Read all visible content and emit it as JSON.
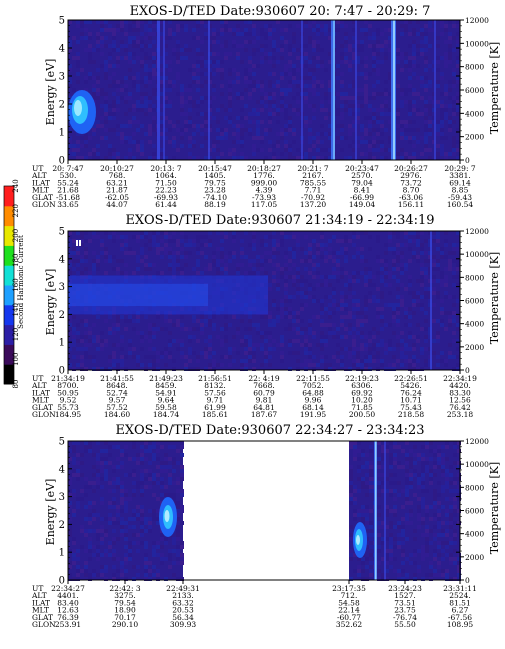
{
  "chart_data": [
    {
      "type": "heatmap",
      "title": "EXOS-D/TED   Date:930607  20: 7:47 - 20:29: 7",
      "ylabel": "Energy [eV]",
      "y2label": "Temperature [K]",
      "ylim": [
        0,
        5
      ],
      "y2lim": [
        0,
        12000
      ],
      "yticks": [
        "0",
        "1",
        "2",
        "3",
        "4",
        "5"
      ],
      "y2ticks": [
        "0",
        "2000",
        "4000",
        "6000",
        "8000",
        "10000",
        "12000"
      ],
      "row_labels": [
        "UT",
        "ALT",
        "ILAT",
        "MLT",
        "GLAT",
        "GLON"
      ],
      "columns": [
        [
          "20: 7:47",
          "530.",
          "55.24",
          "21.68",
          "-51.68",
          "33.65"
        ],
        [
          "20:10:27",
          "768.",
          "63.21",
          "21.87",
          "-62.05",
          "44.07"
        ],
        [
          "20:13: 7",
          "1064.",
          "71.50",
          "22.23",
          "-69.93",
          "61.44"
        ],
        [
          "20:15:47",
          "1405.",
          "79.75",
          "23.28",
          "-74.10",
          "88.19"
        ],
        [
          "20:18:27",
          "1776.",
          "999.00",
          "4.39",
          "-73.93",
          "117.05"
        ],
        [
          "20:21: 7",
          "2167.",
          "785.55",
          "7.71",
          "-70.92",
          "137.20"
        ],
        [
          "20:23:47",
          "2570.",
          "79.04",
          "8.41",
          "-66.99",
          "149.04"
        ],
        [
          "20:26:27",
          "2976.",
          "73.72",
          "8.70",
          "-63.06",
          "156.11"
        ],
        [
          "20:29: 7",
          "3381.",
          "69.14",
          "8.85",
          "-59.43",
          "160.54"
        ]
      ]
    },
    {
      "type": "heatmap",
      "title": "EXOS-D/TED   Date:930607  21:34:19 - 22:34:19",
      "ylabel": "Energy [eV]",
      "y2label": "Temperature [K]",
      "ylim": [
        0,
        5
      ],
      "y2lim": [
        0,
        12000
      ],
      "yticks": [
        "0",
        "1",
        "2",
        "3",
        "4",
        "5"
      ],
      "y2ticks": [
        "0",
        "2000",
        "4000",
        "6000",
        "8000",
        "10000",
        "12000"
      ],
      "row_labels": [
        "UT",
        "ALT",
        "ILAT",
        "MLT",
        "GLAT",
        "GLON"
      ],
      "columns": [
        [
          "21:34:19",
          "8700.",
          "50.95",
          "9.52",
          "55.73",
          "184.95"
        ],
        [
          "21:41:55",
          "8648.",
          "52.74",
          "9.57",
          "57.52",
          "184.60"
        ],
        [
          "21:49:23",
          "8459.",
          "54.91",
          "9.64",
          "59.58",
          "184.74"
        ],
        [
          "21:56:51",
          "8132.",
          "57.56",
          "9.71",
          "61.99",
          "185.61"
        ],
        [
          "22: 4:19",
          "7668.",
          "60.79",
          "9.81",
          "64.81",
          "187.67"
        ],
        [
          "22:11:55",
          "7052.",
          "64.88",
          "9.96",
          "68.14",
          "191.95"
        ],
        [
          "22:19:23",
          "6306.",
          "69.92",
          "10.20",
          "71.85",
          "200.50"
        ],
        [
          "22:26:51",
          "5426.",
          "76.24",
          "10.71",
          "75.43",
          "218.58"
        ],
        [
          "22:34:19",
          "4420.",
          "83.30",
          "12.56",
          "76.42",
          "253.18"
        ]
      ]
    },
    {
      "type": "heatmap",
      "title": "EXOS-D/TED   Date:930607  22:34:27 - 23:34:23",
      "ylabel": "Energy [eV]",
      "y2label": "Temperature [K]",
      "ylim": [
        0,
        5
      ],
      "y2lim": [
        0,
        12000
      ],
      "yticks": [
        "0",
        "1",
        "2",
        "3",
        "4",
        "5"
      ],
      "y2ticks": [
        "0",
        "2000",
        "4000",
        "6000",
        "8000",
        "10000",
        "12000"
      ],
      "row_labels": [
        "UT",
        "ALT",
        "ILAT",
        "MLT",
        "GLAT",
        "GLON"
      ],
      "columns": [
        [
          "22:34:27",
          "4401.",
          "83.40",
          "12.63",
          "76.39",
          "253.91"
        ],
        [
          "22:42: 3",
          "3275.",
          "79.54",
          "18.90",
          "70.17",
          "290.10"
        ],
        [
          "22:49:31",
          "2133.",
          "63.32",
          "20.53",
          "56.34",
          "309.93"
        ],
        [
          "23:17:35",
          "712.",
          "54.58",
          "22.14",
          "-60.77",
          "352.62"
        ],
        [
          "23:24:23",
          "1527.",
          "73.51",
          "23.75",
          "-76.74",
          "55.50"
        ],
        [
          "23:31:11",
          "2524.",
          "81.51",
          "6.27",
          "-67.56",
          "108.95"
        ]
      ]
    }
  ],
  "colorbar": {
    "label": "Second Harmonic Current",
    "ticks": [
      "80",
      "100",
      "120",
      "140",
      "160",
      "180",
      "200",
      "220",
      "240"
    ],
    "colors": [
      "#000000",
      "#3a0a5a",
      "#2c1ea6",
      "#1537ee",
      "#1ea0ff",
      "#12e0d6",
      "#1ee01e",
      "#e8e800",
      "#ff8c00",
      "#ff1e1e"
    ]
  }
}
